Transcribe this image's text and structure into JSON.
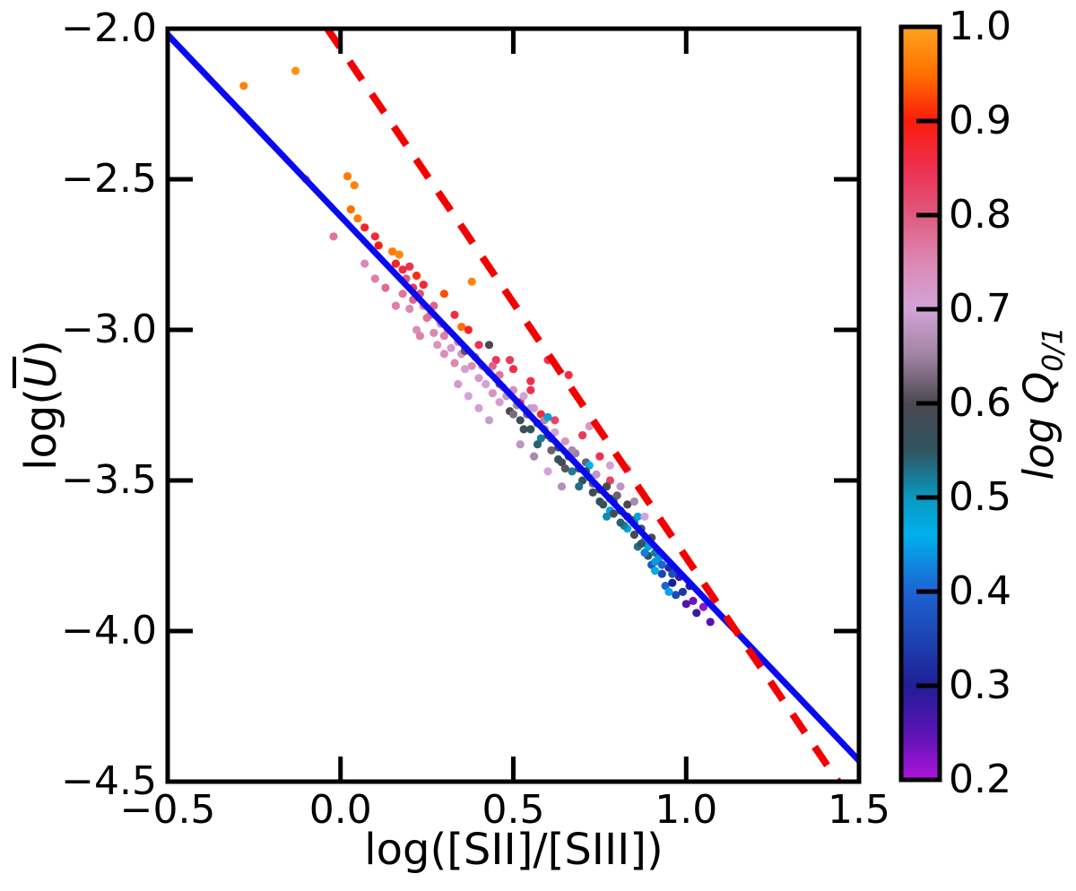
{
  "labels": {
    "xlabel": "log([SII]/[SIII])",
    "ylabel_prefix": "log(",
    "ylabel_u": "U",
    "ylabel_suffix": ")",
    "cbar_label_main": "log Q",
    "cbar_label_sub": "0/1"
  },
  "colors": {
    "background": "#ffffff",
    "axis": "#000000",
    "fit_line": "#0a0af0",
    "dashed_line": "#f50000"
  },
  "chart_data": {
    "type": "scatter",
    "title": "",
    "xlabel": "log([SII]/[SIII])",
    "ylabel": "log(U̅)",
    "colorbar_label": "log Q0/1",
    "xlim": [
      -0.5,
      1.5
    ],
    "ylim": [
      -4.5,
      -2.0
    ],
    "clim": [
      0.2,
      1.0
    ],
    "grid": false,
    "xticks": {
      "values": [
        -0.5,
        0.0,
        0.5,
        1.0,
        1.5
      ],
      "labels": [
        "−0.5",
        "0.0",
        "0.5",
        "1.0",
        "1.5"
      ]
    },
    "yticks": {
      "values": [
        -2.0,
        -2.5,
        -3.0,
        -3.5,
        -4.0,
        -4.5
      ],
      "labels": [
        "−2.0",
        "−2.5",
        "−3.0",
        "−3.5",
        "−4.0",
        "−4.5"
      ]
    },
    "colorbar_ticks": {
      "values": [
        1.0,
        0.9,
        0.8,
        0.7,
        0.6,
        0.5,
        0.4,
        0.3,
        0.2
      ],
      "labels": [
        "1.0",
        "0.9",
        "0.8",
        "0.7",
        "0.6",
        "0.5",
        "0.4",
        "0.3",
        "0.2"
      ]
    },
    "colormap_stops": [
      {
        "q": 1.0,
        "c": "#ffa41e"
      },
      {
        "q": 0.95,
        "c": "#ff6f00"
      },
      {
        "q": 0.9,
        "c": "#fb1c0c"
      },
      {
        "q": 0.85,
        "c": "#ee3050"
      },
      {
        "q": 0.8,
        "c": "#df5a80"
      },
      {
        "q": 0.75,
        "c": "#dc88b4"
      },
      {
        "q": 0.7,
        "c": "#d2a3d8"
      },
      {
        "q": 0.65,
        "c": "#a083a2"
      },
      {
        "q": 0.6,
        "c": "#4b4850"
      },
      {
        "q": 0.55,
        "c": "#30545f"
      },
      {
        "q": 0.5,
        "c": "#0998c0"
      },
      {
        "q": 0.46,
        "c": "#00b0ec"
      },
      {
        "q": 0.4,
        "c": "#1d63d2"
      },
      {
        "q": 0.35,
        "c": "#1c44b2"
      },
      {
        "q": 0.3,
        "c": "#201e96"
      },
      {
        "q": 0.25,
        "c": "#5a14b4"
      },
      {
        "q": 0.2,
        "c": "#ae14dc"
      }
    ],
    "marker_radius_px": 4.6,
    "lines": [
      {
        "name": "linear-fit",
        "style": "solid",
        "color": "#0a0af0",
        "width": 7,
        "x": [
          -0.5,
          1.5
        ],
        "y": [
          -2.02,
          -4.43
        ]
      },
      {
        "name": "reference",
        "style": "dashed",
        "color": "#f50000",
        "width": 8,
        "dash": [
          25,
          19
        ],
        "x": [
          -0.038,
          1.44
        ],
        "y": [
          -2.0,
          -4.5
        ]
      }
    ],
    "points_xyq": [
      [
        -0.28,
        -2.19,
        0.97
      ],
      [
        -0.13,
        -2.14,
        0.98
      ],
      [
        0.02,
        -2.49,
        0.96
      ],
      [
        0.04,
        -2.52,
        0.97
      ],
      [
        0.03,
        -2.6,
        0.95
      ],
      [
        0.05,
        -2.63,
        0.96
      ],
      [
        0.15,
        -2.74,
        0.96
      ],
      [
        0.17,
        -2.75,
        0.97
      ],
      [
        0.38,
        -2.84,
        0.97
      ],
      [
        0.35,
        -2.99,
        0.95
      ],
      [
        0.3,
        -2.88,
        0.93
      ],
      [
        -0.1,
        -2.5,
        0.77
      ],
      [
        -0.02,
        -2.69,
        0.77
      ],
      [
        0.07,
        -2.78,
        0.75
      ],
      [
        0.1,
        -2.83,
        0.76
      ],
      [
        0.13,
        -2.86,
        0.78
      ],
      [
        0.07,
        -2.66,
        0.88
      ],
      [
        0.1,
        -2.69,
        0.87
      ],
      [
        0.11,
        -2.72,
        0.9
      ],
      [
        0.16,
        -2.78,
        0.88
      ],
      [
        0.18,
        -2.8,
        0.86
      ],
      [
        0.2,
        -2.79,
        0.85
      ],
      [
        0.22,
        -2.82,
        0.91
      ],
      [
        0.24,
        -2.85,
        0.87
      ],
      [
        0.21,
        -2.86,
        0.84
      ],
      [
        0.33,
        -2.95,
        0.86
      ],
      [
        0.37,
        -3.0,
        0.88
      ],
      [
        0.4,
        -3.05,
        0.85
      ],
      [
        0.45,
        -3.1,
        0.84
      ],
      [
        0.49,
        -3.1,
        0.84
      ],
      [
        0.5,
        -3.13,
        0.86
      ],
      [
        0.52,
        -3.24,
        0.84
      ],
      [
        0.55,
        -3.17,
        0.85
      ],
      [
        0.55,
        -3.2,
        0.85
      ],
      [
        0.58,
        -3.28,
        0.86
      ],
      [
        0.6,
        -3.1,
        0.84
      ],
      [
        0.62,
        -3.3,
        0.83
      ],
      [
        0.66,
        -3.15,
        0.86
      ],
      [
        0.7,
        -3.35,
        0.84
      ],
      [
        0.75,
        -3.42,
        0.85
      ],
      [
        0.78,
        -3.5,
        0.83
      ],
      [
        0.16,
        -2.92,
        0.76
      ],
      [
        0.2,
        -2.93,
        0.75
      ],
      [
        0.22,
        -3.0,
        0.74
      ],
      [
        0.23,
        -3.02,
        0.76
      ],
      [
        0.25,
        -2.96,
        0.77
      ],
      [
        0.27,
        -3.01,
        0.75
      ],
      [
        0.28,
        -3.05,
        0.73
      ],
      [
        0.3,
        -3.02,
        0.76
      ],
      [
        0.3,
        -3.08,
        0.74
      ],
      [
        0.32,
        -3.06,
        0.72
      ],
      [
        0.33,
        -3.11,
        0.75
      ],
      [
        0.35,
        -3.08,
        0.73
      ],
      [
        0.36,
        -3.13,
        0.71
      ],
      [
        0.38,
        -3.12,
        0.74
      ],
      [
        0.4,
        -3.16,
        0.72
      ],
      [
        0.42,
        -3.18,
        0.7
      ],
      [
        0.44,
        -3.21,
        0.73
      ],
      [
        0.45,
        -3.16,
        0.75
      ],
      [
        0.46,
        -3.24,
        0.71
      ],
      [
        0.44,
        -3.12,
        0.79
      ],
      [
        0.46,
        -3.15,
        0.77
      ],
      [
        0.18,
        -2.88,
        0.77
      ],
      [
        0.21,
        -2.9,
        0.79
      ],
      [
        0.24,
        -2.92,
        0.76
      ],
      [
        0.26,
        -2.95,
        0.78
      ],
      [
        0.29,
        -2.98,
        0.74
      ],
      [
        0.31,
        -3.0,
        0.77
      ],
      [
        0.19,
        -2.83,
        0.8
      ],
      [
        0.23,
        -2.88,
        0.81
      ],
      [
        0.27,
        -2.92,
        0.79
      ],
      [
        0.34,
        -3.04,
        0.76
      ],
      [
        0.36,
        -3.06,
        0.78
      ],
      [
        0.39,
        -3.09,
        0.75
      ],
      [
        0.41,
        -3.12,
        0.77
      ],
      [
        0.43,
        -3.14,
        0.74
      ],
      [
        0.34,
        -3.18,
        0.72
      ],
      [
        0.37,
        -3.22,
        0.7
      ],
      [
        0.4,
        -3.26,
        0.71
      ],
      [
        0.43,
        -3.3,
        0.69
      ],
      [
        0.52,
        -3.38,
        0.68
      ],
      [
        0.56,
        -3.42,
        0.66
      ],
      [
        0.6,
        -3.47,
        0.7
      ],
      [
        0.64,
        -3.52,
        0.67
      ],
      [
        0.46,
        -3.18,
        0.62
      ],
      [
        0.48,
        -3.22,
        0.68
      ],
      [
        0.49,
        -3.27,
        0.6
      ],
      [
        0.5,
        -3.2,
        0.74
      ],
      [
        0.51,
        -3.25,
        0.65
      ],
      [
        0.52,
        -3.3,
        0.58
      ],
      [
        0.53,
        -3.22,
        0.7
      ],
      [
        0.54,
        -3.28,
        0.62
      ],
      [
        0.55,
        -3.33,
        0.55
      ],
      [
        0.56,
        -3.26,
        0.72
      ],
      [
        0.57,
        -3.31,
        0.6
      ],
      [
        0.58,
        -3.36,
        0.52
      ],
      [
        0.59,
        -3.3,
        0.66
      ],
      [
        0.6,
        -3.35,
        0.58
      ],
      [
        0.61,
        -3.4,
        0.62
      ],
      [
        0.62,
        -3.34,
        0.7
      ],
      [
        0.63,
        -3.39,
        0.55
      ],
      [
        0.64,
        -3.44,
        0.6
      ],
      [
        0.65,
        -3.37,
        0.73
      ],
      [
        0.66,
        -3.42,
        0.58
      ],
      [
        0.67,
        -3.47,
        0.52
      ],
      [
        0.68,
        -3.41,
        0.65
      ],
      [
        0.69,
        -3.46,
        0.6
      ],
      [
        0.7,
        -3.5,
        0.56
      ],
      [
        0.71,
        -3.44,
        0.62
      ],
      [
        0.72,
        -3.49,
        0.5
      ],
      [
        0.73,
        -3.54,
        0.58
      ],
      [
        0.74,
        -3.48,
        0.68
      ],
      [
        0.75,
        -3.53,
        0.6
      ],
      [
        0.36,
        -3.07,
        0.61
      ],
      [
        0.43,
        -3.05,
        0.6
      ],
      [
        0.6,
        -3.29,
        0.48
      ],
      [
        0.72,
        -3.45,
        0.46
      ],
      [
        0.78,
        -3.6,
        0.45
      ],
      [
        0.83,
        -3.66,
        0.47
      ],
      [
        0.86,
        -3.62,
        0.48
      ],
      [
        0.89,
        -3.72,
        0.48
      ],
      [
        0.76,
        -3.58,
        0.57
      ],
      [
        0.77,
        -3.52,
        0.6
      ],
      [
        0.78,
        -3.56,
        0.55
      ],
      [
        0.79,
        -3.61,
        0.58
      ],
      [
        0.8,
        -3.55,
        0.62
      ],
      [
        0.81,
        -3.6,
        0.56
      ],
      [
        0.82,
        -3.65,
        0.52
      ],
      [
        0.83,
        -3.58,
        0.6
      ],
      [
        0.84,
        -3.63,
        0.55
      ],
      [
        0.85,
        -3.68,
        0.58
      ],
      [
        0.86,
        -3.72,
        0.53
      ],
      [
        0.87,
        -3.66,
        0.57
      ],
      [
        0.88,
        -3.7,
        0.5
      ],
      [
        0.89,
        -3.75,
        0.55
      ],
      [
        0.9,
        -3.69,
        0.6
      ],
      [
        0.91,
        -3.74,
        0.52
      ],
      [
        0.72,
        -3.32,
        0.72
      ],
      [
        0.78,
        -3.45,
        0.7
      ],
      [
        0.81,
        -3.52,
        0.68
      ],
      [
        0.85,
        -3.57,
        0.66
      ],
      [
        0.88,
        -3.62,
        0.7
      ],
      [
        0.83,
        -3.46,
        0.7
      ],
      [
        0.47,
        -3.19,
        0.71
      ],
      [
        0.5,
        -3.28,
        0.63
      ],
      [
        0.53,
        -3.33,
        0.57
      ],
      [
        0.55,
        -3.26,
        0.69
      ],
      [
        0.57,
        -3.38,
        0.54
      ],
      [
        0.59,
        -3.33,
        0.64
      ],
      [
        0.61,
        -3.36,
        0.59
      ],
      [
        0.63,
        -3.43,
        0.56
      ],
      [
        0.65,
        -3.46,
        0.61
      ],
      [
        0.67,
        -3.4,
        0.66
      ],
      [
        0.69,
        -3.52,
        0.53
      ],
      [
        0.71,
        -3.47,
        0.58
      ],
      [
        0.73,
        -3.51,
        0.62
      ],
      [
        0.75,
        -3.57,
        0.55
      ],
      [
        0.77,
        -3.62,
        0.51
      ],
      [
        0.79,
        -3.57,
        0.59
      ],
      [
        0.81,
        -3.64,
        0.54
      ],
      [
        0.83,
        -3.62,
        0.57
      ],
      [
        0.85,
        -3.64,
        0.52
      ],
      [
        0.87,
        -3.71,
        0.56
      ],
      [
        0.88,
        -3.74,
        0.42
      ],
      [
        0.9,
        -3.78,
        0.38
      ],
      [
        0.92,
        -3.76,
        0.44
      ],
      [
        0.93,
        -3.81,
        0.35
      ],
      [
        0.94,
        -3.85,
        0.4
      ],
      [
        0.95,
        -3.79,
        0.32
      ],
      [
        0.96,
        -3.84,
        0.3
      ],
      [
        0.97,
        -3.88,
        0.36
      ],
      [
        0.98,
        -3.82,
        0.28
      ],
      [
        0.99,
        -3.87,
        0.33
      ],
      [
        1.0,
        -3.91,
        0.26
      ],
      [
        1.01,
        -3.85,
        0.3
      ],
      [
        1.02,
        -3.9,
        0.24
      ],
      [
        1.03,
        -3.94,
        0.28
      ],
      [
        1.05,
        -3.92,
        0.22
      ],
      [
        1.07,
        -3.97,
        0.25
      ],
      [
        0.91,
        -3.8,
        0.47
      ],
      [
        0.95,
        -3.87,
        0.45
      ],
      [
        0.91,
        -3.77,
        0.44
      ],
      [
        0.93,
        -3.78,
        0.4
      ],
      [
        0.96,
        -3.81,
        0.37
      ]
    ]
  }
}
